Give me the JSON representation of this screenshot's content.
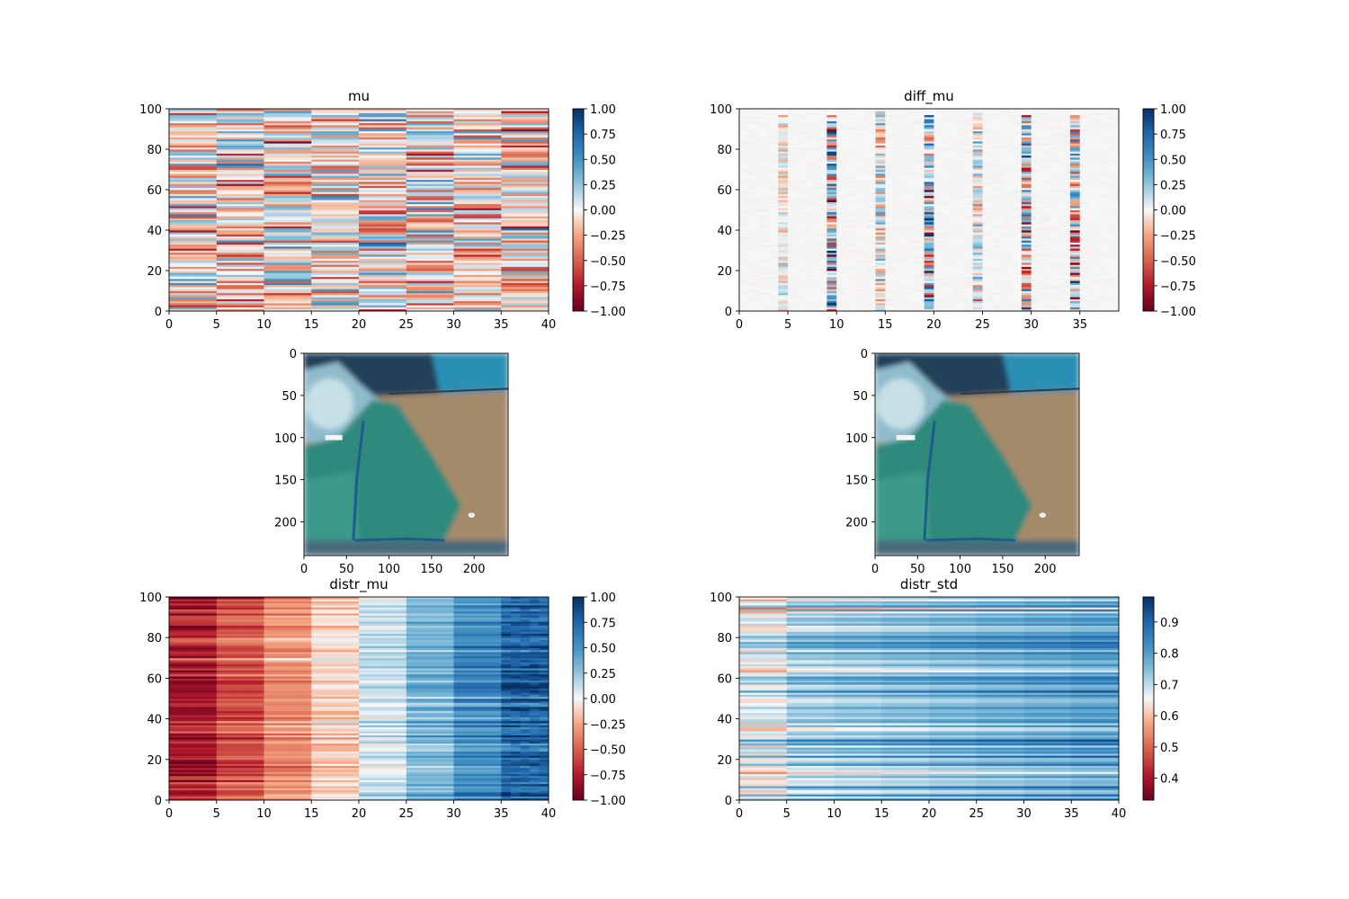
{
  "chart_data": [
    {
      "id": "mu",
      "type": "heatmap",
      "title": "mu",
      "cmap": "RdBu",
      "xlim": [
        0,
        40
      ],
      "ylim": [
        0,
        100
      ],
      "xticks": [
        0,
        5,
        10,
        15,
        20,
        25,
        30,
        35,
        40
      ],
      "yticks": [
        0,
        20,
        40,
        60,
        80,
        100
      ],
      "colorbar": {
        "min": -1.0,
        "max": 1.0,
        "ticks": [
          1.0,
          0.75,
          0.5,
          0.25,
          0.0,
          -0.25,
          -0.5,
          -0.75,
          -1.0
        ],
        "tick_labels": [
          "1.00",
          "0.75",
          "0.50",
          "0.25",
          "0.00",
          "−0.25",
          "−0.50",
          "−0.75",
          "−1.00"
        ]
      },
      "pattern": "random"
    },
    {
      "id": "diff_mu",
      "type": "heatmap",
      "title": "diff_mu",
      "cmap": "RdBu",
      "xlim": [
        0,
        39
      ],
      "ylim": [
        0,
        100
      ],
      "xticks": [
        0,
        5,
        10,
        15,
        20,
        25,
        30,
        35
      ],
      "yticks": [
        0,
        20,
        40,
        60,
        80,
        100
      ],
      "colorbar": {
        "min": -1.0,
        "max": 1.0,
        "ticks": [
          1.0,
          0.75,
          0.5,
          0.25,
          0.0,
          -0.25,
          -0.5,
          -0.75,
          -1.0
        ],
        "tick_labels": [
          "1.00",
          "0.75",
          "0.50",
          "0.25",
          "0.00",
          "−0.25",
          "−0.50",
          "−0.75",
          "−1.00"
        ]
      },
      "pattern": "diff",
      "strong_columns": [
        9,
        19,
        29,
        34
      ],
      "medium_columns": [
        14,
        24
      ],
      "weak_columns": [
        4
      ]
    },
    {
      "id": "image_left",
      "type": "image",
      "title": "",
      "xlim": [
        0,
        240
      ],
      "ylim": [
        240,
        0
      ],
      "xticks": [
        0,
        50,
        100,
        150,
        200
      ],
      "yticks": [
        0,
        50,
        100,
        150,
        200
      ],
      "variant": 0
    },
    {
      "id": "image_right",
      "type": "image",
      "title": "",
      "xlim": [
        0,
        240
      ],
      "ylim": [
        240,
        0
      ],
      "xticks": [
        0,
        50,
        100,
        150,
        200
      ],
      "yticks": [
        0,
        50,
        100,
        150,
        200
      ],
      "variant": 1
    },
    {
      "id": "distr_mu",
      "type": "heatmap",
      "title": "distr_mu",
      "cmap": "RdBu",
      "xlim": [
        0,
        40
      ],
      "ylim": [
        0,
        100
      ],
      "xticks": [
        0,
        5,
        10,
        15,
        20,
        25,
        30,
        35,
        40
      ],
      "yticks": [
        0,
        20,
        40,
        60,
        80,
        100
      ],
      "colorbar": {
        "min": -1.0,
        "max": 1.0,
        "ticks": [
          1.0,
          0.75,
          0.5,
          0.25,
          0.0,
          -0.25,
          -0.5,
          -0.75,
          -1.0
        ],
        "tick_labels": [
          "1.00",
          "0.75",
          "0.50",
          "0.25",
          "0.00",
          "−0.25",
          "−0.50",
          "−0.75",
          "−1.00"
        ]
      },
      "pattern": "sorted"
    },
    {
      "id": "distr_std",
      "type": "heatmap",
      "title": "distr_std",
      "cmap": "RdBu",
      "xlim": [
        0,
        40
      ],
      "ylim": [
        0,
        100
      ],
      "xticks": [
        0,
        5,
        10,
        15,
        20,
        25,
        30,
        35,
        40
      ],
      "yticks": [
        0,
        20,
        40,
        60,
        80,
        100
      ],
      "colorbar": {
        "min": 0.33,
        "max": 0.98,
        "ticks": [
          0.9,
          0.8,
          0.7,
          0.6,
          0.5,
          0.4
        ],
        "tick_labels": [
          "0.9",
          "0.8",
          "0.7",
          "0.6",
          "0.5",
          "0.4"
        ]
      },
      "pattern": "std"
    }
  ]
}
